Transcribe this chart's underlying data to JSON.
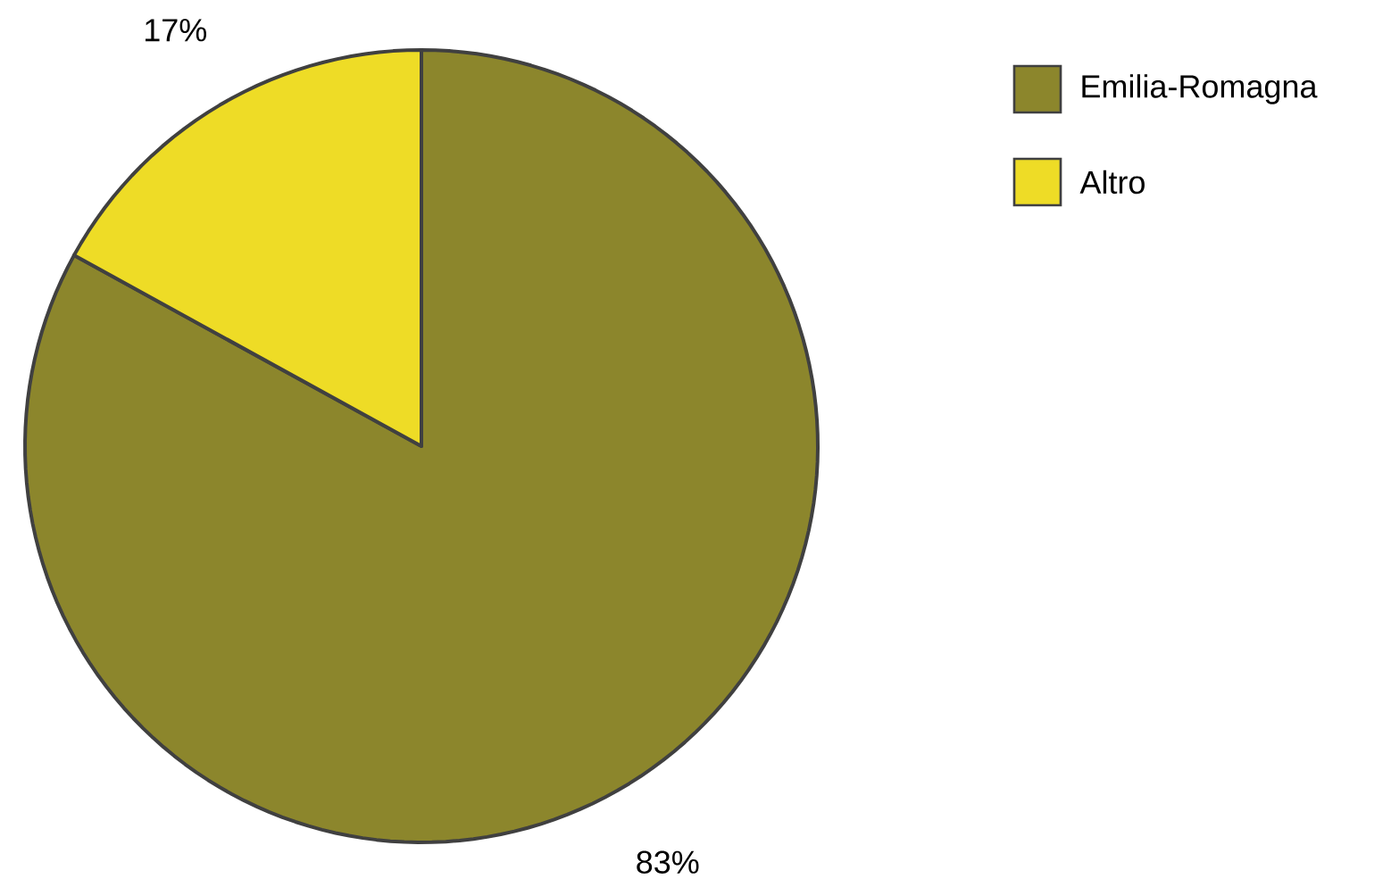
{
  "chart_data": {
    "type": "pie",
    "categories": [
      "Emilia-Romagna",
      "Altro"
    ],
    "values": [
      83,
      17
    ],
    "colors": [
      "#8c862c",
      "#eedc26"
    ],
    "value_labels": [
      "83%",
      "17%"
    ],
    "legend": "top right"
  }
}
